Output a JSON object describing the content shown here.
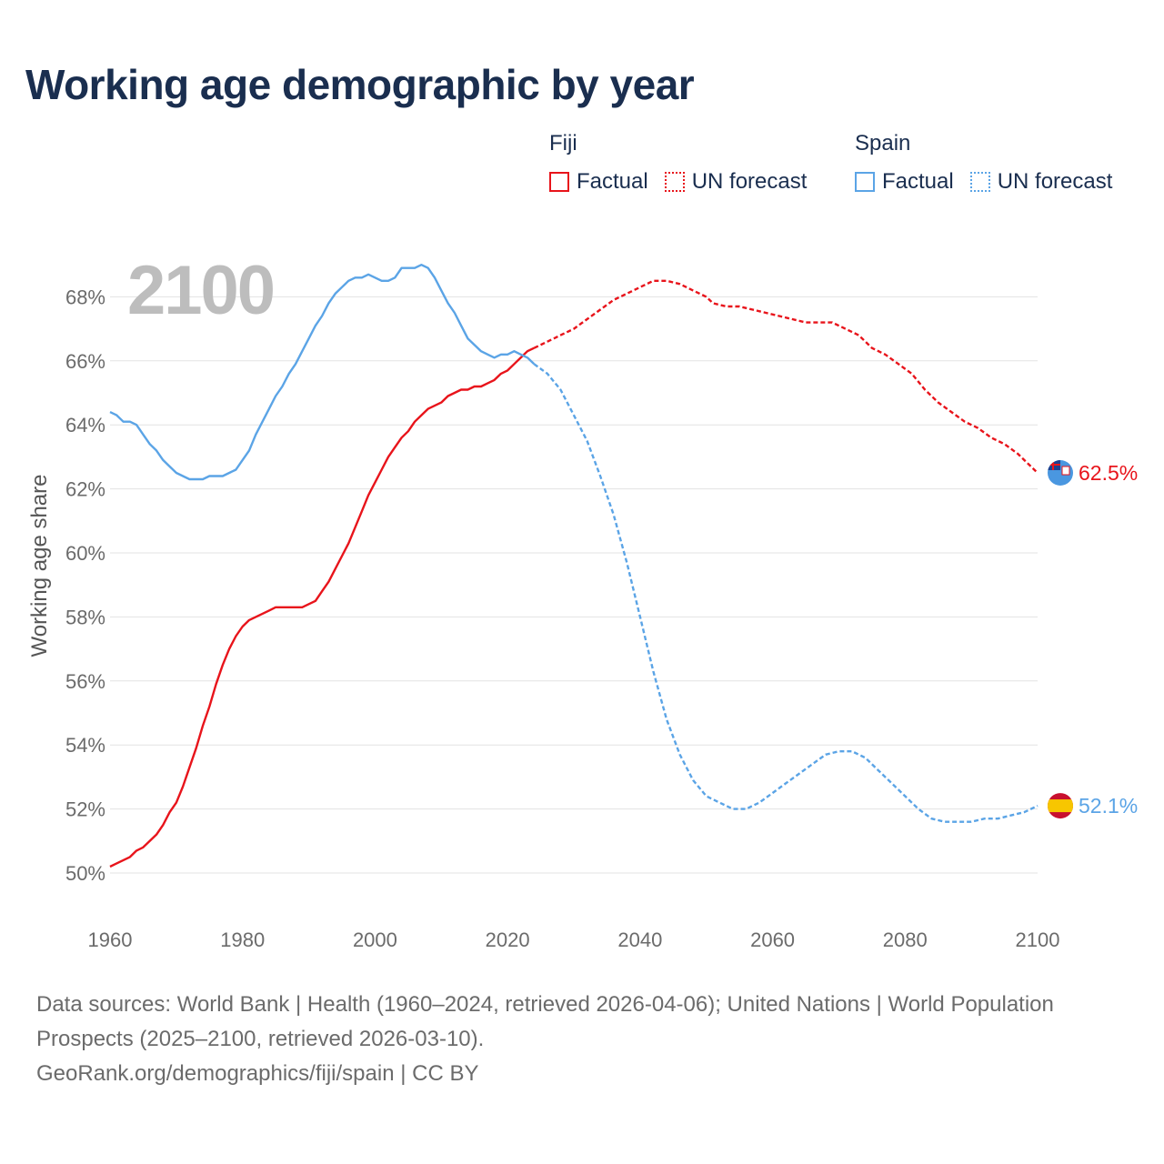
{
  "title": "Working age demographic by year",
  "year_label": "2100",
  "legend": {
    "groups": [
      {
        "name": "Fiji",
        "factual_label": "Factual",
        "forecast_label": "UN forecast",
        "color": "#e8141b"
      },
      {
        "name": "Spain",
        "factual_label": "Factual",
        "forecast_label": "UN forecast",
        "color": "#5ba4e6"
      }
    ]
  },
  "source": {
    "line1": "Data sources: World Bank | Health (1960–2024, retrieved 2026-04-06); United Nations | World Population Prospects (2025–2100, retrieved 2026-03-10).",
    "line2": "GeoRank.org/demographics/fiji/spain | CC BY"
  },
  "chart_data": {
    "type": "line",
    "title": "Working age demographic by year",
    "xlabel": "",
    "ylabel": "Working age share",
    "xlim": [
      1960,
      2100
    ],
    "ylim": [
      50,
      70
    ],
    "x_ticks": [
      "1960",
      "1980",
      "2000",
      "2020",
      "2040",
      "2060",
      "2080",
      "2100"
    ],
    "x_tick_values": [
      1960,
      1980,
      2000,
      2020,
      2040,
      2060,
      2080,
      2100
    ],
    "y_ticks": [
      "50%",
      "52%",
      "54%",
      "56%",
      "58%",
      "60%",
      "62%",
      "64%",
      "66%",
      "68%"
    ],
    "y_tick_values": [
      50,
      52,
      54,
      56,
      58,
      60,
      62,
      64,
      66,
      68
    ],
    "grid": true,
    "series": [
      {
        "name": "Fiji",
        "segment": "Factual",
        "color": "#e8141b",
        "dashed": false,
        "points": [
          [
            1960,
            50.2
          ],
          [
            1961,
            50.3
          ],
          [
            1962,
            50.4
          ],
          [
            1963,
            50.5
          ],
          [
            1964,
            50.7
          ],
          [
            1965,
            50.8
          ],
          [
            1966,
            51.0
          ],
          [
            1967,
            51.2
          ],
          [
            1968,
            51.5
          ],
          [
            1969,
            51.9
          ],
          [
            1970,
            52.2
          ],
          [
            1971,
            52.7
          ],
          [
            1972,
            53.3
          ],
          [
            1973,
            53.9
          ],
          [
            1974,
            54.6
          ],
          [
            1975,
            55.2
          ],
          [
            1976,
            55.9
          ],
          [
            1977,
            56.5
          ],
          [
            1978,
            57.0
          ],
          [
            1979,
            57.4
          ],
          [
            1980,
            57.7
          ],
          [
            1981,
            57.9
          ],
          [
            1982,
            58.0
          ],
          [
            1983,
            58.1
          ],
          [
            1984,
            58.2
          ],
          [
            1985,
            58.3
          ],
          [
            1986,
            58.3
          ],
          [
            1987,
            58.3
          ],
          [
            1988,
            58.3
          ],
          [
            1989,
            58.3
          ],
          [
            1990,
            58.4
          ],
          [
            1991,
            58.5
          ],
          [
            1992,
            58.8
          ],
          [
            1993,
            59.1
          ],
          [
            1994,
            59.5
          ],
          [
            1995,
            59.9
          ],
          [
            1996,
            60.3
          ],
          [
            1997,
            60.8
          ],
          [
            1998,
            61.3
          ],
          [
            1999,
            61.8
          ],
          [
            2000,
            62.2
          ],
          [
            2001,
            62.6
          ],
          [
            2002,
            63.0
          ],
          [
            2003,
            63.3
          ],
          [
            2004,
            63.6
          ],
          [
            2005,
            63.8
          ],
          [
            2006,
            64.1
          ],
          [
            2007,
            64.3
          ],
          [
            2008,
            64.5
          ],
          [
            2009,
            64.6
          ],
          [
            2010,
            64.7
          ],
          [
            2011,
            64.9
          ],
          [
            2012,
            65.0
          ],
          [
            2013,
            65.1
          ],
          [
            2014,
            65.1
          ],
          [
            2015,
            65.2
          ],
          [
            2016,
            65.2
          ],
          [
            2017,
            65.3
          ],
          [
            2018,
            65.4
          ],
          [
            2019,
            65.6
          ],
          [
            2020,
            65.7
          ],
          [
            2021,
            65.9
          ],
          [
            2022,
            66.1
          ],
          [
            2023,
            66.3
          ],
          [
            2024,
            66.4
          ]
        ]
      },
      {
        "name": "Fiji",
        "segment": "UN forecast",
        "color": "#e8141b",
        "dashed": true,
        "points": [
          [
            2024,
            66.4
          ],
          [
            2026,
            66.6
          ],
          [
            2028,
            66.8
          ],
          [
            2030,
            67.0
          ],
          [
            2032,
            67.3
          ],
          [
            2034,
            67.6
          ],
          [
            2036,
            67.9
          ],
          [
            2038,
            68.1
          ],
          [
            2040,
            68.3
          ],
          [
            2042,
            68.5
          ],
          [
            2044,
            68.5
          ],
          [
            2046,
            68.4
          ],
          [
            2048,
            68.2
          ],
          [
            2050,
            68.0
          ],
          [
            2051,
            67.8
          ],
          [
            2053,
            67.7
          ],
          [
            2055,
            67.7
          ],
          [
            2057,
            67.6
          ],
          [
            2059,
            67.5
          ],
          [
            2061,
            67.4
          ],
          [
            2063,
            67.3
          ],
          [
            2065,
            67.2
          ],
          [
            2067,
            67.2
          ],
          [
            2069,
            67.2
          ],
          [
            2071,
            67.0
          ],
          [
            2073,
            66.8
          ],
          [
            2075,
            66.4
          ],
          [
            2077,
            66.2
          ],
          [
            2079,
            65.9
          ],
          [
            2081,
            65.6
          ],
          [
            2083,
            65.1
          ],
          [
            2085,
            64.7
          ],
          [
            2087,
            64.4
          ],
          [
            2089,
            64.1
          ],
          [
            2091,
            63.9
          ],
          [
            2093,
            63.6
          ],
          [
            2095,
            63.4
          ],
          [
            2097,
            63.1
          ],
          [
            2099,
            62.7
          ],
          [
            2100,
            62.5
          ]
        ]
      },
      {
        "name": "Spain",
        "segment": "Factual",
        "color": "#5ba4e6",
        "dashed": false,
        "points": [
          [
            1960,
            64.4
          ],
          [
            1961,
            64.3
          ],
          [
            1962,
            64.1
          ],
          [
            1963,
            64.1
          ],
          [
            1964,
            64.0
          ],
          [
            1965,
            63.7
          ],
          [
            1966,
            63.4
          ],
          [
            1967,
            63.2
          ],
          [
            1968,
            62.9
          ],
          [
            1969,
            62.7
          ],
          [
            1970,
            62.5
          ],
          [
            1971,
            62.4
          ],
          [
            1972,
            62.3
          ],
          [
            1973,
            62.3
          ],
          [
            1974,
            62.3
          ],
          [
            1975,
            62.4
          ],
          [
            1976,
            62.4
          ],
          [
            1977,
            62.4
          ],
          [
            1978,
            62.5
          ],
          [
            1979,
            62.6
          ],
          [
            1980,
            62.9
          ],
          [
            1981,
            63.2
          ],
          [
            1982,
            63.7
          ],
          [
            1983,
            64.1
          ],
          [
            1984,
            64.5
          ],
          [
            1985,
            64.9
          ],
          [
            1986,
            65.2
          ],
          [
            1987,
            65.6
          ],
          [
            1988,
            65.9
          ],
          [
            1989,
            66.3
          ],
          [
            1990,
            66.7
          ],
          [
            1991,
            67.1
          ],
          [
            1992,
            67.4
          ],
          [
            1993,
            67.8
          ],
          [
            1994,
            68.1
          ],
          [
            1995,
            68.3
          ],
          [
            1996,
            68.5
          ],
          [
            1997,
            68.6
          ],
          [
            1998,
            68.6
          ],
          [
            1999,
            68.7
          ],
          [
            2000,
            68.6
          ],
          [
            2001,
            68.5
          ],
          [
            2002,
            68.5
          ],
          [
            2003,
            68.6
          ],
          [
            2004,
            68.9
          ],
          [
            2005,
            68.9
          ],
          [
            2006,
            68.9
          ],
          [
            2007,
            69.0
          ],
          [
            2008,
            68.9
          ],
          [
            2009,
            68.6
          ],
          [
            2010,
            68.2
          ],
          [
            2011,
            67.8
          ],
          [
            2012,
            67.5
          ],
          [
            2013,
            67.1
          ],
          [
            2014,
            66.7
          ],
          [
            2015,
            66.5
          ],
          [
            2016,
            66.3
          ],
          [
            2017,
            66.2
          ],
          [
            2018,
            66.1
          ],
          [
            2019,
            66.2
          ],
          [
            2020,
            66.2
          ],
          [
            2021,
            66.3
          ],
          [
            2022,
            66.2
          ],
          [
            2023,
            66.1
          ],
          [
            2024,
            65.9
          ]
        ]
      },
      {
        "name": "Spain",
        "segment": "UN forecast",
        "color": "#5ba4e6",
        "dashed": true,
        "points": [
          [
            2024,
            65.9
          ],
          [
            2026,
            65.6
          ],
          [
            2028,
            65.1
          ],
          [
            2030,
            64.3
          ],
          [
            2032,
            63.5
          ],
          [
            2034,
            62.4
          ],
          [
            2036,
            61.2
          ],
          [
            2038,
            59.7
          ],
          [
            2040,
            58.0
          ],
          [
            2042,
            56.3
          ],
          [
            2044,
            54.8
          ],
          [
            2046,
            53.7
          ],
          [
            2048,
            52.9
          ],
          [
            2050,
            52.4
          ],
          [
            2052,
            52.2
          ],
          [
            2054,
            52.0
          ],
          [
            2056,
            52.0
          ],
          [
            2058,
            52.2
          ],
          [
            2060,
            52.5
          ],
          [
            2062,
            52.8
          ],
          [
            2064,
            53.1
          ],
          [
            2066,
            53.4
          ],
          [
            2068,
            53.7
          ],
          [
            2070,
            53.8
          ],
          [
            2072,
            53.8
          ],
          [
            2074,
            53.6
          ],
          [
            2076,
            53.2
          ],
          [
            2078,
            52.8
          ],
          [
            2080,
            52.4
          ],
          [
            2082,
            52.0
          ],
          [
            2084,
            51.7
          ],
          [
            2086,
            51.6
          ],
          [
            2088,
            51.6
          ],
          [
            2090,
            51.6
          ],
          [
            2092,
            51.7
          ],
          [
            2094,
            51.7
          ],
          [
            2096,
            51.8
          ],
          [
            2098,
            51.9
          ],
          [
            2100,
            52.1
          ]
        ]
      }
    ],
    "end_labels": [
      {
        "name": "Fiji",
        "text": "62.5%",
        "value": 62.5,
        "color": "#e8141b",
        "icon": "fiji-flag-icon"
      },
      {
        "name": "Spain",
        "text": "52.1%",
        "value": 52.1,
        "color": "#5ba4e6",
        "icon": "spain-flag-icon"
      }
    ]
  }
}
